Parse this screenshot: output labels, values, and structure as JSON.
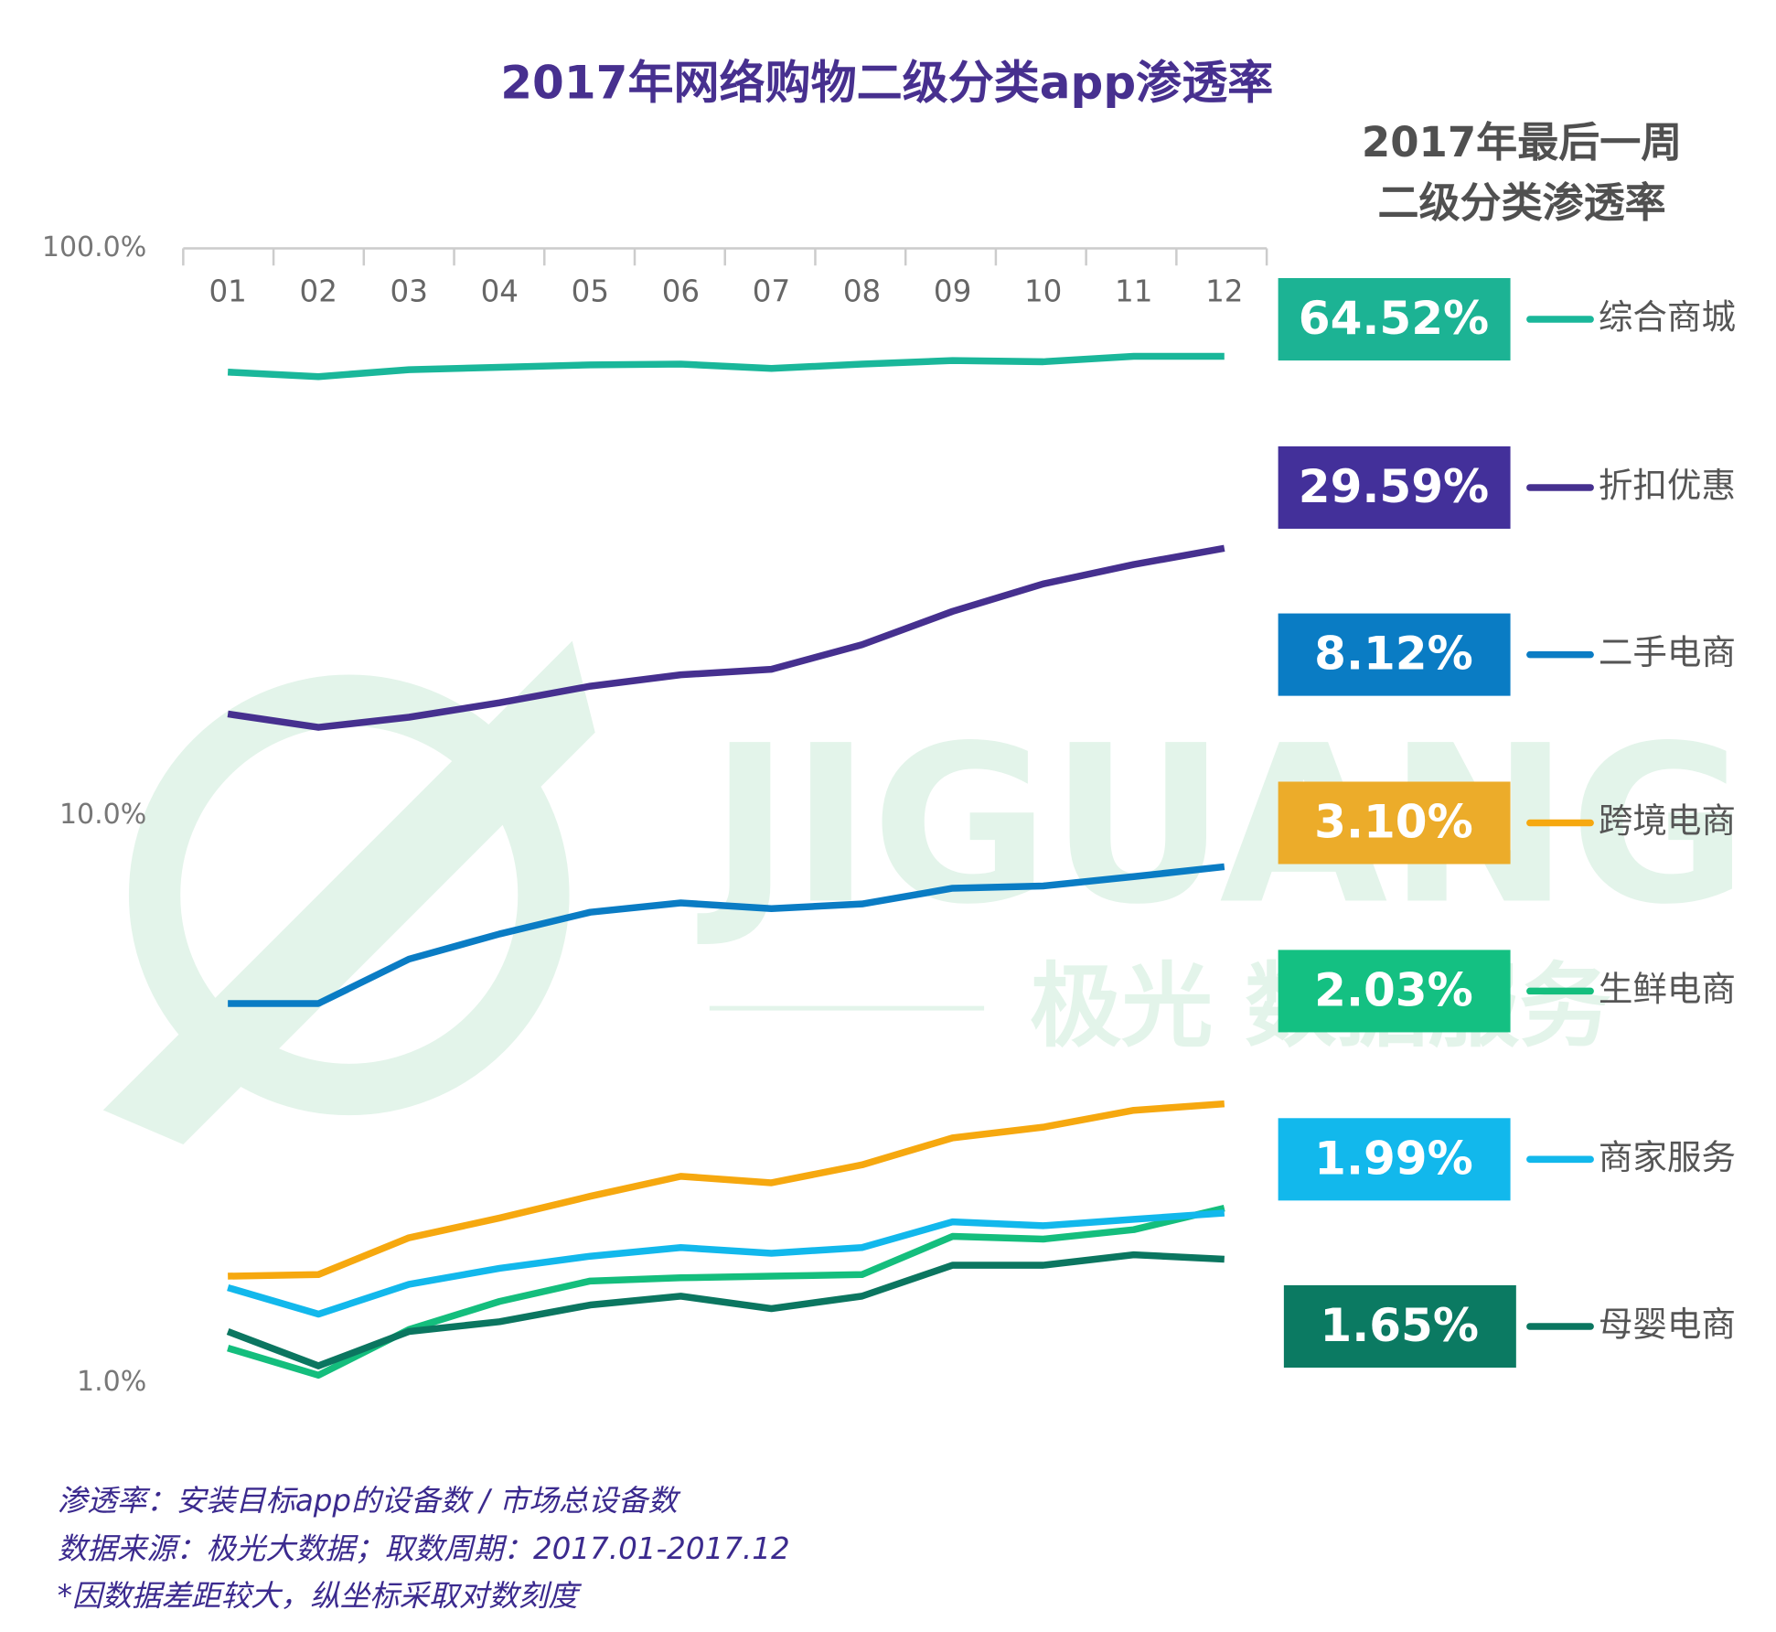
{
  "chart_data": {
    "type": "line",
    "title": "2017年网络购物二级分类app渗透率",
    "side_title": [
      "2017年最后一周",
      "二级分类渗透率"
    ],
    "notes": [
      "渗透率：安装目标app的设备数 / 市场总设备数",
      "数据来源：极光大数据；取数周期：2017.01-2017.12",
      "*因数据差距较大，纵坐标采取对数刻度"
    ],
    "watermark": [
      "JIGUANG",
      "极光 数据服务"
    ],
    "categories": [
      "01",
      "02",
      "03",
      "04",
      "05",
      "06",
      "07",
      "08",
      "09",
      "10",
      "11",
      "12"
    ],
    "log_scale": true,
    "ylim": [
      1,
      100
    ],
    "yticks": [
      {
        "value": 1,
        "label": "1.0%"
      },
      {
        "value": 10,
        "label": "10.0%"
      },
      {
        "value": 100,
        "label": "100.0%"
      }
    ],
    "series": [
      {
        "name": "综合商城",
        "color": "#1ab79a",
        "box_color": "#1cb394",
        "values": [
          60.5,
          59.4,
          61.1,
          61.7,
          62.3,
          62.5,
          61.4,
          62.5,
          63.4,
          63.1,
          64.5,
          64.52
        ],
        "value_labels": [
          null,
          null,
          null,
          null,
          null,
          null,
          null,
          null,
          null,
          null,
          null,
          "64.52%"
        ]
      },
      {
        "name": "折扣优惠",
        "color": "#46308f",
        "box_color": "#43309a",
        "values": [
          15.1,
          14.3,
          14.9,
          15.8,
          16.9,
          17.7,
          18.1,
          20.0,
          22.9,
          25.6,
          27.7,
          29.59
        ],
        "value_labels": [
          null,
          null,
          null,
          null,
          null,
          null,
          null,
          null,
          null,
          null,
          null,
          "29.59%"
        ]
      },
      {
        "name": "二手电商",
        "color": "#0a7cc4",
        "box_color": "#0a7cc4",
        "values": [
          4.66,
          4.66,
          5.58,
          6.18,
          6.75,
          7.01,
          6.85,
          6.98,
          7.44,
          7.51,
          7.8,
          8.12
        ],
        "value_labels": [
          null,
          null,
          null,
          null,
          null,
          null,
          null,
          null,
          null,
          null,
          null,
          "8.12%"
        ]
      },
      {
        "name": "跨境电商",
        "color": "#f6a80f",
        "box_color": "#ecac2a",
        "values": [
          1.54,
          1.55,
          1.8,
          1.95,
          2.13,
          2.31,
          2.25,
          2.42,
          2.7,
          2.82,
          3.02,
          3.1
        ],
        "value_labels": [
          null,
          null,
          null,
          null,
          null,
          null,
          null,
          null,
          null,
          null,
          null,
          "3.10%"
        ]
      },
      {
        "name": "生鲜电商",
        "color": "#14be7d",
        "box_color": "#14c082",
        "values": [
          1.15,
          1.03,
          1.24,
          1.39,
          1.51,
          1.53,
          1.54,
          1.55,
          1.81,
          1.79,
          1.86,
          2.03
        ],
        "value_labels": [
          null,
          null,
          null,
          null,
          null,
          null,
          null,
          null,
          null,
          null,
          null,
          "2.03%"
        ]
      },
      {
        "name": "商家服务",
        "color": "#12b8ec",
        "box_color": "#12b8ec",
        "values": [
          1.47,
          1.32,
          1.49,
          1.59,
          1.67,
          1.73,
          1.69,
          1.73,
          1.92,
          1.89,
          1.94,
          1.99
        ],
        "value_labels": [
          null,
          null,
          null,
          null,
          null,
          null,
          null,
          null,
          null,
          null,
          null,
          "1.99%"
        ]
      },
      {
        "name": "母婴电商",
        "color": "#0b7660",
        "box_color": "#0b7a62",
        "values": [
          1.23,
          1.07,
          1.23,
          1.28,
          1.37,
          1.42,
          1.35,
          1.42,
          1.61,
          1.61,
          1.68,
          1.65
        ],
        "value_labels": [
          null,
          null,
          null,
          null,
          null,
          null,
          null,
          null,
          null,
          null,
          null,
          "1.65%"
        ]
      }
    ]
  }
}
